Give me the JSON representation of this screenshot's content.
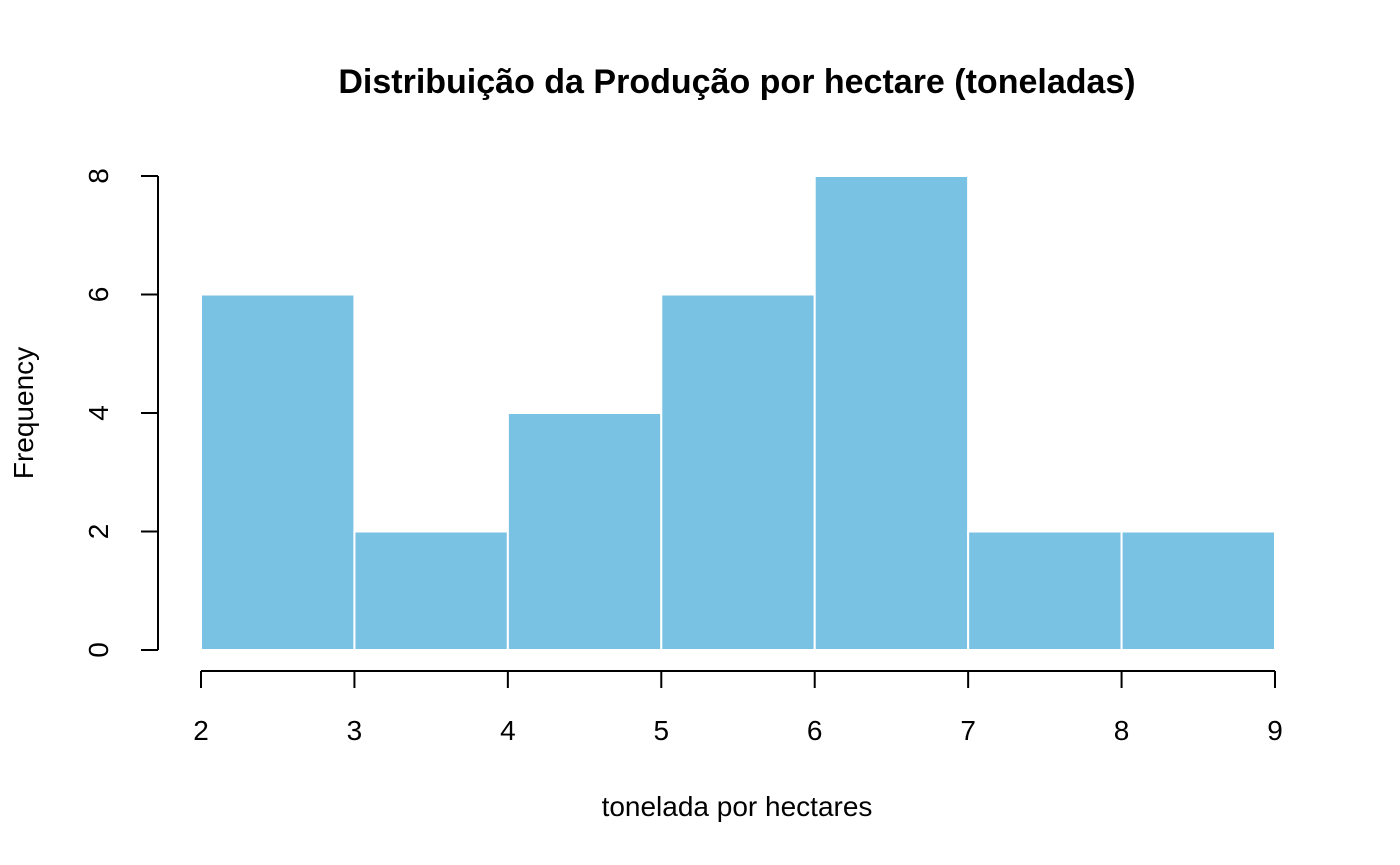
{
  "chart_data": {
    "type": "bar",
    "title": "Distribuição da Produção por hectare (toneladas)",
    "xlabel": "tonelada por hectares",
    "ylabel": "Frequency",
    "bins": [
      {
        "start": 2,
        "end": 3,
        "count": 6
      },
      {
        "start": 3,
        "end": 4,
        "count": 2
      },
      {
        "start": 4,
        "end": 5,
        "count": 4
      },
      {
        "start": 5,
        "end": 6,
        "count": 6
      },
      {
        "start": 6,
        "end": 7,
        "count": 8
      },
      {
        "start": 7,
        "end": 8,
        "count": 2
      },
      {
        "start": 8,
        "end": 9,
        "count": 2
      }
    ],
    "xlim": [
      2,
      9
    ],
    "ylim": [
      0,
      8
    ],
    "x_ticks": [
      "2",
      "3",
      "4",
      "5",
      "6",
      "7",
      "8",
      "9"
    ],
    "y_ticks": [
      "0",
      "2",
      "4",
      "6",
      "8"
    ],
    "bar_color": "#7AC2E4",
    "bar_border_color": "#ffffff",
    "grid": false,
    "legend": "none"
  }
}
